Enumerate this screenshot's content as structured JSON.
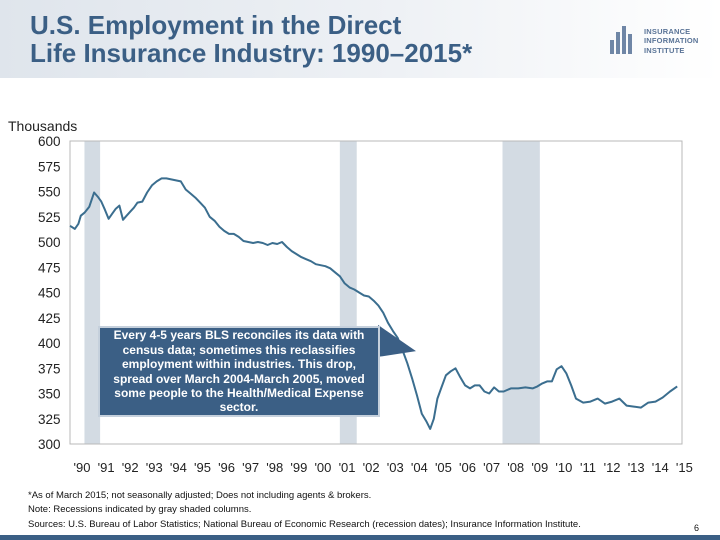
{
  "header": {
    "title_line1": "U.S. Employment in the Direct",
    "title_line2": "Life Insurance Industry: 1990–2015*",
    "logo_line1": "INSURANCE",
    "logo_line2": "INFORMATION",
    "logo_line3": "INSTITUTE"
  },
  "colors": {
    "line": "#3b6e8f",
    "recession": "#d3dbe3",
    "title": "#3b5f85",
    "callout": "#3b5f85"
  },
  "chart_data": {
    "type": "line",
    "title": "U.S. Employment in the Direct Life Insurance Industry: 1990–2015*",
    "ylabel": "Thousands",
    "xlabel": "",
    "ylim": [
      300,
      600
    ],
    "xlim": [
      1990,
      2015.4
    ],
    "yticks": [
      600,
      575,
      550,
      525,
      500,
      475,
      450,
      425,
      400,
      375,
      350,
      325,
      300
    ],
    "xticks": [
      "'90",
      "'91",
      "'92",
      "'93",
      "'94",
      "'95",
      "'96",
      "'97",
      "'98",
      "'99",
      "'00",
      "'01",
      "'02",
      "'03",
      "'04",
      "'05",
      "'06",
      "'07",
      "'08",
      "'09",
      "'10",
      "'11",
      "'12",
      "'13",
      "'14",
      "'15"
    ],
    "grid": false,
    "recessions": [
      [
        1990.6,
        1991.25
      ],
      [
        2001.2,
        2001.9
      ],
      [
        2007.95,
        2009.5
      ]
    ],
    "series": [
      {
        "x": [
          1990.0,
          1990.2,
          1990.35,
          1990.45,
          1990.6,
          1990.8,
          1991.0,
          1991.15,
          1991.3,
          1991.45,
          1991.6,
          1991.75,
          1991.9,
          1992.05,
          1992.2,
          1992.35,
          1992.5,
          1992.65,
          1992.8,
          1993.0,
          1993.2,
          1993.4,
          1993.6,
          1993.8,
          1994.0,
          1994.2,
          1994.4,
          1994.6,
          1994.8,
          1995.0,
          1995.2,
          1995.4,
          1995.6,
          1995.8,
          1996.0,
          1996.2,
          1996.4,
          1996.6,
          1996.8,
          1997.0,
          1997.2,
          1997.4,
          1997.6,
          1997.8,
          1998.0,
          1998.2,
          1998.4,
          1998.6,
          1998.8,
          1999.0,
          1999.2,
          1999.4,
          1999.6,
          1999.8,
          2000.0,
          2000.2,
          2000.4,
          2000.6,
          2000.8,
          2001.0,
          2001.2,
          2001.4,
          2001.6,
          2001.8,
          2002.0,
          2002.2,
          2002.4,
          2002.6,
          2002.8,
          2003.0,
          2003.2,
          2003.4,
          2003.6,
          2003.8,
          2004.0,
          2004.2,
          2004.4,
          2004.6,
          2004.8,
          2004.95,
          2005.1,
          2005.25,
          2005.4,
          2005.6,
          2005.8,
          2006.0,
          2006.2,
          2006.4,
          2006.6,
          2006.8,
          2007.0,
          2007.2,
          2007.4,
          2007.6,
          2007.8,
          2008.0,
          2008.3,
          2008.6,
          2008.9,
          2009.2,
          2009.4,
          2009.6,
          2009.8,
          2010.0,
          2010.2,
          2010.4,
          2010.6,
          2010.8,
          2011.0,
          2011.3,
          2011.6,
          2011.9,
          2012.2,
          2012.5,
          2012.8,
          2013.1,
          2013.4,
          2013.7,
          2014.0,
          2014.3,
          2014.6,
          2014.9,
          2015.2
        ],
        "values": [
          516,
          513,
          518,
          526,
          529,
          535,
          549,
          545,
          540,
          532,
          523,
          528,
          533,
          536,
          522,
          526,
          530,
          534,
          539,
          540,
          549,
          556,
          560,
          563,
          563,
          562,
          561,
          560,
          552,
          548,
          544,
          539,
          534,
          525,
          521,
          515,
          511,
          508,
          508,
          505,
          501,
          500,
          499,
          500,
          499,
          497,
          499,
          498,
          500,
          495,
          491,
          488,
          485,
          483,
          481,
          478,
          477,
          476,
          474,
          470,
          466,
          459,
          455,
          453,
          450,
          447,
          446,
          442,
          437,
          430,
          420,
          412,
          405,
          393,
          380,
          365,
          348,
          330,
          322,
          315,
          325,
          345,
          355,
          368,
          372,
          375,
          366,
          358,
          355,
          358,
          358,
          352,
          350,
          356,
          352,
          352,
          355,
          355,
          356,
          355,
          357,
          360,
          362,
          362,
          374,
          377,
          370,
          358,
          345,
          341,
          342,
          345,
          340,
          342,
          345,
          338,
          337,
          336,
          341,
          342,
          346,
          352,
          357
        ]
      }
    ]
  },
  "callout": {
    "text": "Every 4-5 years BLS reconciles its data with census data; sometimes this reclassifies employment within industries. This drop, spread over March 2004-March 2005, moved some people to the Health/Medical Expense sector."
  },
  "notes": {
    "line1": "*As of March 2015; not seasonally adjusted; Does not including agents & brokers.",
    "line2": "Note: Recessions indicated by gray shaded columns.",
    "line3": "Sources: U.S. Bureau of Labor Statistics;  National Bureau of Economic Research (recession dates); Insurance Information Institute."
  },
  "page_number": "6"
}
